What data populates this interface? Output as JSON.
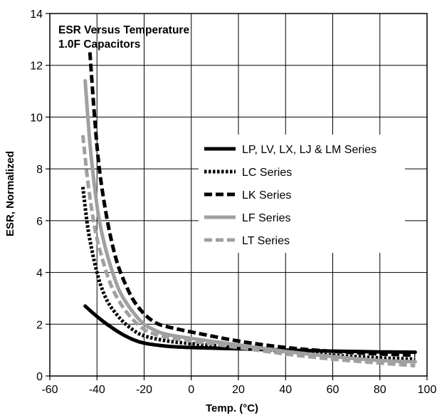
{
  "chart_data": {
    "type": "line",
    "title": "ESR Versus Temperature",
    "subtitle": "1.0F Capacitors",
    "xlabel": "Temp. (°C)",
    "ylabel": "ESR, Normalized",
    "xlim": [
      -60,
      100
    ],
    "ylim": [
      0,
      14
    ],
    "xticks": [
      -60,
      -40,
      -20,
      0,
      20,
      40,
      60,
      80,
      100
    ],
    "yticks": [
      0,
      2,
      4,
      6,
      8,
      10,
      12,
      14
    ],
    "grid": true,
    "legend_position": "right",
    "series": [
      {
        "name": "LP, LV, LX, LJ & LM Series",
        "color": "#000000",
        "style": "solid",
        "points": [
          [
            -45,
            2.7
          ],
          [
            -40,
            2.3
          ],
          [
            -35,
            1.95
          ],
          [
            -30,
            1.65
          ],
          [
            -25,
            1.42
          ],
          [
            -20,
            1.27
          ],
          [
            -10,
            1.15
          ],
          [
            0,
            1.1
          ],
          [
            20,
            1.05
          ],
          [
            40,
            1.0
          ],
          [
            60,
            0.96
          ],
          [
            80,
            0.93
          ],
          [
            95,
            0.92
          ]
        ]
      },
      {
        "name": "LC Series",
        "color": "#000000",
        "style": "dotted",
        "points": [
          [
            -46,
            7.3
          ],
          [
            -44,
            5.8
          ],
          [
            -42,
            4.8
          ],
          [
            -40,
            4.0
          ],
          [
            -38,
            3.4
          ],
          [
            -35,
            2.8
          ],
          [
            -30,
            2.2
          ],
          [
            -25,
            1.8
          ],
          [
            -20,
            1.55
          ],
          [
            -10,
            1.35
          ],
          [
            0,
            1.25
          ],
          [
            20,
            1.1
          ],
          [
            40,
            0.95
          ],
          [
            60,
            0.8
          ],
          [
            80,
            0.7
          ],
          [
            95,
            0.65
          ]
        ]
      },
      {
        "name": "LK Series",
        "color": "#000000",
        "style": "dashed",
        "points": [
          [
            -43,
            12.5
          ],
          [
            -41,
            10.0
          ],
          [
            -39,
            8.0
          ],
          [
            -36,
            6.2
          ],
          [
            -33,
            4.9
          ],
          [
            -30,
            4.0
          ],
          [
            -25,
            3.0
          ],
          [
            -20,
            2.4
          ],
          [
            -15,
            2.05
          ],
          [
            -10,
            1.9
          ],
          [
            0,
            1.7
          ],
          [
            20,
            1.35
          ],
          [
            40,
            1.1
          ],
          [
            60,
            0.95
          ],
          [
            80,
            0.85
          ],
          [
            95,
            0.8
          ]
        ]
      },
      {
        "name": "LF Series",
        "color": "#a0a0a0",
        "style": "solid",
        "points": [
          [
            -45,
            11.4
          ],
          [
            -43,
            9.0
          ],
          [
            -41,
            7.3
          ],
          [
            -39,
            6.0
          ],
          [
            -36,
            4.8
          ],
          [
            -33,
            3.9
          ],
          [
            -30,
            3.2
          ],
          [
            -25,
            2.5
          ],
          [
            -20,
            2.0
          ],
          [
            -15,
            1.75
          ],
          [
            -10,
            1.6
          ],
          [
            0,
            1.45
          ],
          [
            20,
            1.2
          ],
          [
            40,
            0.95
          ],
          [
            60,
            0.75
          ],
          [
            80,
            0.6
          ],
          [
            95,
            0.55
          ]
        ]
      },
      {
        "name": "LT Series",
        "color": "#a0a0a0",
        "style": "dashed",
        "points": [
          [
            -46,
            9.3
          ],
          [
            -44,
            7.6
          ],
          [
            -42,
            6.3
          ],
          [
            -40,
            5.3
          ],
          [
            -37,
            4.3
          ],
          [
            -34,
            3.5
          ],
          [
            -30,
            2.8
          ],
          [
            -25,
            2.2
          ],
          [
            -20,
            1.8
          ],
          [
            -15,
            1.6
          ],
          [
            -10,
            1.5
          ],
          [
            0,
            1.35
          ],
          [
            20,
            1.1
          ],
          [
            40,
            0.85
          ],
          [
            60,
            0.65
          ],
          [
            80,
            0.5
          ],
          [
            95,
            0.4
          ]
        ]
      }
    ]
  }
}
